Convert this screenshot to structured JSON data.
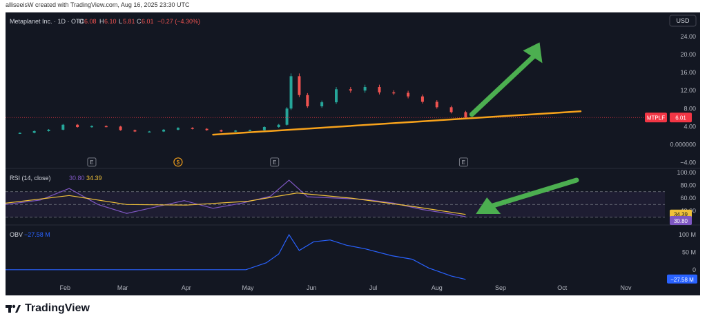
{
  "attribution": "alliseeisW created with TradingView.com, Aug 16, 2025 23:30 UTC",
  "footer_brand": "TradingView",
  "colors": {
    "background": "#131722",
    "up_candle": "#26a69a",
    "down_candle": "#ef5350",
    "trendline": "#f7a21b",
    "arrow": "#4caf50",
    "rsi_line": "#7e57c2",
    "rsi_ma": "#f0c13a",
    "obv_line": "#2962ff",
    "price_label": "#f23645"
  },
  "chart_data": [
    {
      "type": "candlestick",
      "legend": {
        "symbol": "Metaplanet Inc. · 1D · OTC",
        "open_label": "O",
        "open": "6.08",
        "high_label": "H",
        "high": "6.10",
        "low_label": "L",
        "low": "5.81",
        "close_label": "C",
        "close": "6.01",
        "change": "−0.27 (−4.30%)"
      },
      "currency": "USD",
      "price_label": {
        "ticker": "MTPLF",
        "value": "6.01"
      },
      "y_ticks": [
        "24.00",
        "20.00",
        "16.00",
        "12.00",
        "8.00",
        "4.00",
        "0.000000",
        "−4.00"
      ],
      "ylim": [
        -5,
        26
      ],
      "x_months": [
        "Feb",
        "Mar",
        "Apr",
        "May",
        "Jun",
        "Jul",
        "Aug",
        "Sep",
        "Oct",
        "Nov"
      ],
      "events": [
        {
          "date": "2025-02-14",
          "label": "E"
        },
        {
          "date": "2025-03-28",
          "label": "$"
        },
        {
          "date": "2025-05-14",
          "label": "E"
        },
        {
          "date": "2025-08-14",
          "label": "E"
        }
      ],
      "closes": [
        {
          "date": "2025-01-10",
          "close": 2.6
        },
        {
          "date": "2025-01-17",
          "close": 3.0
        },
        {
          "date": "2025-01-24",
          "close": 3.3
        },
        {
          "date": "2025-01-31",
          "close": 4.4
        },
        {
          "date": "2025-02-07",
          "close": 3.9
        },
        {
          "date": "2025-02-14",
          "close": 4.1
        },
        {
          "date": "2025-02-21",
          "close": 4.0
        },
        {
          "date": "2025-02-28",
          "close": 3.2
        },
        {
          "date": "2025-03-07",
          "close": 2.9
        },
        {
          "date": "2025-03-14",
          "close": 2.9
        },
        {
          "date": "2025-03-21",
          "close": 3.3
        },
        {
          "date": "2025-03-28",
          "close": 3.7
        },
        {
          "date": "2025-04-04",
          "close": 3.5
        },
        {
          "date": "2025-04-11",
          "close": 3.2
        },
        {
          "date": "2025-04-18",
          "close": 2.9
        },
        {
          "date": "2025-04-25",
          "close": 3.1
        },
        {
          "date": "2025-05-02",
          "close": 3.2
        },
        {
          "date": "2025-05-09",
          "close": 3.9
        },
        {
          "date": "2025-05-16",
          "close": 4.4
        },
        {
          "date": "2025-05-20",
          "close": 8.0
        },
        {
          "date": "2025-05-22",
          "close": 15.2
        },
        {
          "date": "2025-05-26",
          "close": 11.0
        },
        {
          "date": "2025-05-30",
          "close": 8.5
        },
        {
          "date": "2025-06-06",
          "close": 9.4
        },
        {
          "date": "2025-06-13",
          "close": 12.3
        },
        {
          "date": "2025-06-20",
          "close": 12.0
        },
        {
          "date": "2025-06-27",
          "close": 12.8
        },
        {
          "date": "2025-07-04",
          "close": 11.6
        },
        {
          "date": "2025-07-11",
          "close": 11.5
        },
        {
          "date": "2025-07-18",
          "close": 10.7
        },
        {
          "date": "2025-07-25",
          "close": 9.5
        },
        {
          "date": "2025-08-01",
          "close": 8.3
        },
        {
          "date": "2025-08-08",
          "close": 7.2
        },
        {
          "date": "2025-08-15",
          "close": 6.01
        }
      ],
      "annotations": [
        "trendline",
        "arrow"
      ]
    },
    {
      "type": "line",
      "legend": {
        "name": "RSI (14, close)",
        "value": "30.80",
        "ma_value": "34.39"
      },
      "y_ticks": [
        "100.00",
        "80.00",
        "60.00",
        "40.00"
      ],
      "band": [
        30,
        70
      ],
      "ylim": [
        20,
        100
      ],
      "series": [
        {
          "name": "RSI",
          "points": [
            {
              "date": "2025-01-03",
              "v": 50
            },
            {
              "date": "2025-01-20",
              "v": 57
            },
            {
              "date": "2025-02-03",
              "v": 75
            },
            {
              "date": "2025-02-17",
              "v": 50
            },
            {
              "date": "2025-03-03",
              "v": 36
            },
            {
              "date": "2025-03-17",
              "v": 46
            },
            {
              "date": "2025-03-31",
              "v": 56
            },
            {
              "date": "2025-04-14",
              "v": 44
            },
            {
              "date": "2025-04-28",
              "v": 52
            },
            {
              "date": "2025-05-12",
              "v": 63
            },
            {
              "date": "2025-05-21",
              "v": 88
            },
            {
              "date": "2025-05-30",
              "v": 62
            },
            {
              "date": "2025-06-13",
              "v": 60
            },
            {
              "date": "2025-06-27",
              "v": 58
            },
            {
              "date": "2025-07-11",
              "v": 52
            },
            {
              "date": "2025-07-25",
              "v": 42
            },
            {
              "date": "2025-08-08",
              "v": 35
            },
            {
              "date": "2025-08-15",
              "v": 30.8
            }
          ]
        },
        {
          "name": "RSI-based MA",
          "points": [
            {
              "date": "2025-01-03",
              "v": 52
            },
            {
              "date": "2025-02-03",
              "v": 64
            },
            {
              "date": "2025-03-03",
              "v": 50
            },
            {
              "date": "2025-04-01",
              "v": 49
            },
            {
              "date": "2025-05-01",
              "v": 55
            },
            {
              "date": "2025-05-25",
              "v": 68
            },
            {
              "date": "2025-06-20",
              "v": 60
            },
            {
              "date": "2025-07-20",
              "v": 47
            },
            {
              "date": "2025-08-15",
              "v": 34.39
            }
          ]
        }
      ]
    },
    {
      "type": "line",
      "legend": {
        "name": "OBV",
        "value": "−27.58 M"
      },
      "y_ticks": [
        "100 M",
        "50 M",
        "0"
      ],
      "last_label": "−27.58 M",
      "ylim": [
        -30,
        120
      ],
      "series": [
        {
          "name": "OBV",
          "points": [
            {
              "date": "2025-01-03",
              "v": 0
            },
            {
              "date": "2025-04-30",
              "v": 0
            },
            {
              "date": "2025-05-10",
              "v": 20
            },
            {
              "date": "2025-05-16",
              "v": 45
            },
            {
              "date": "2025-05-21",
              "v": 100
            },
            {
              "date": "2025-05-26",
              "v": 55
            },
            {
              "date": "2025-06-02",
              "v": 80
            },
            {
              "date": "2025-06-10",
              "v": 85
            },
            {
              "date": "2025-06-18",
              "v": 70
            },
            {
              "date": "2025-06-27",
              "v": 60
            },
            {
              "date": "2025-07-10",
              "v": 40
            },
            {
              "date": "2025-07-20",
              "v": 30
            },
            {
              "date": "2025-07-28",
              "v": 5
            },
            {
              "date": "2025-08-08",
              "v": -18
            },
            {
              "date": "2025-08-15",
              "v": -27.58
            }
          ]
        }
      ]
    }
  ]
}
